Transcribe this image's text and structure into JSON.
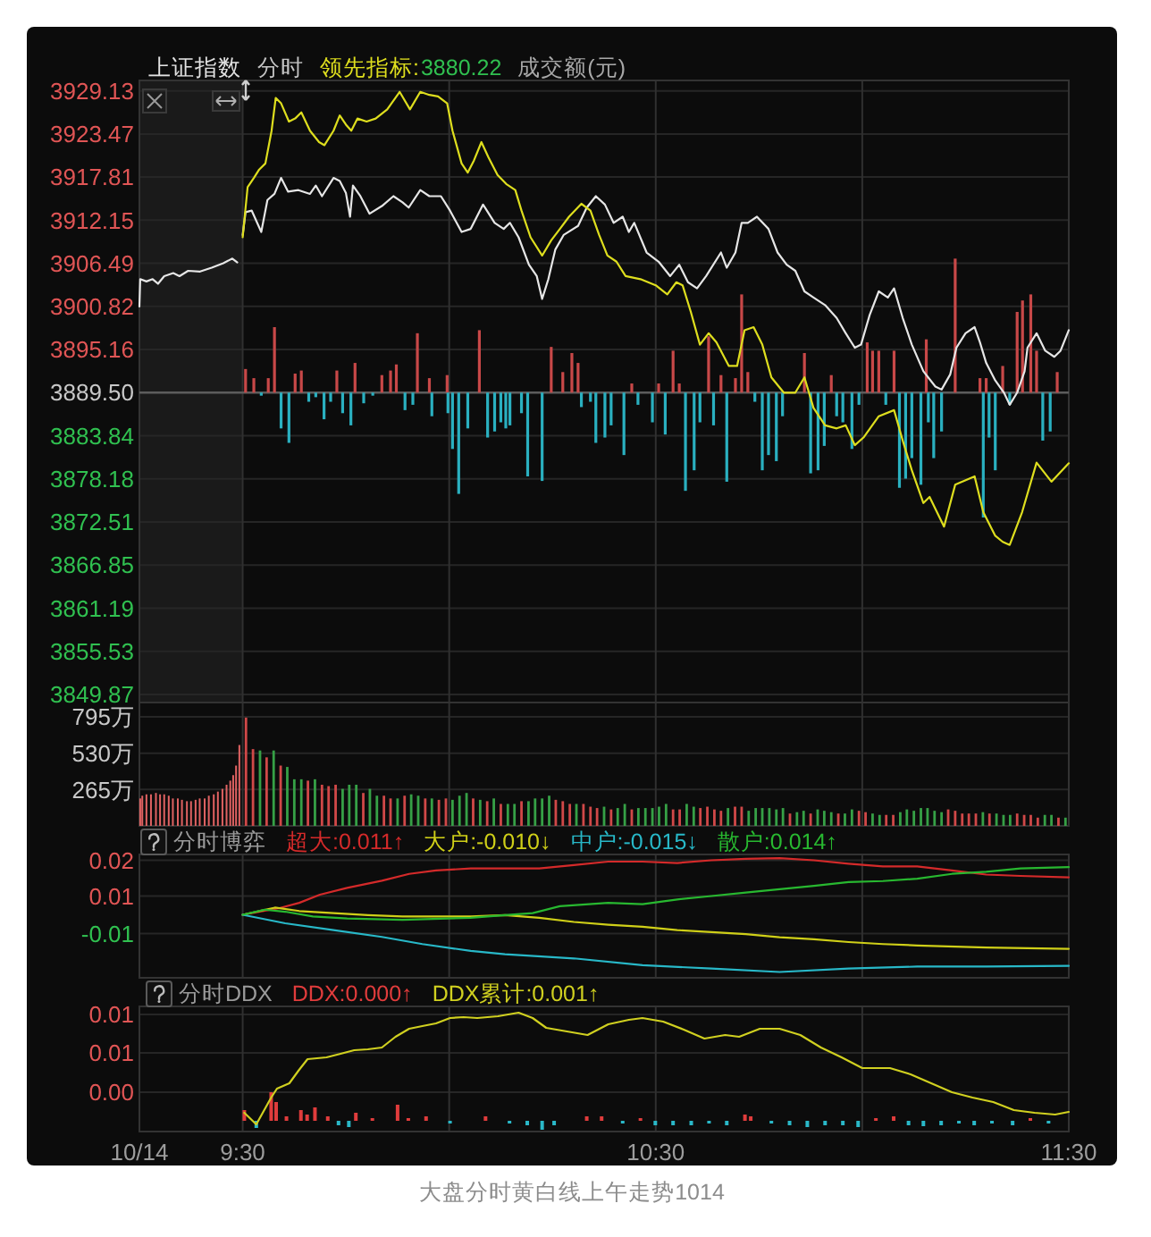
{
  "chart_data": [
    {
      "type": "line",
      "title": "上证指数",
      "subtitle": "分时",
      "legend": "top left",
      "annotations": [
        "3880.22",
        "成交额(元)"
      ],
      "xlim": [
        9.25,
        11.5
      ],
      "xticks": [
        9.25,
        9.5,
        10,
        10.5,
        11,
        11.5
      ],
      "ylim": [
        3848.8,
        3930.5
      ],
      "yticks": [
        3929.13,
        3923.47,
        3917.81,
        3912.15,
        3906.49,
        3900.82,
        3895.16,
        {
          "value": 3889.5,
          "label": "3889.50"
        },
        3883.84,
        3878.18,
        3872.51,
        3866.85,
        3861.19,
        3855.53,
        3849.87
      ],
      "tick_labels": "y",
      "grid": true,
      "ref_lines": [
        {
          "axis": "y",
          "value": 3889.5,
          "color": "#5c5c5c"
        }
      ],
      "bands": [
        {
          "axis": "x",
          "from": 9.25,
          "to": 9.5,
          "color": "#1a1a1a"
        }
      ],
      "series": [
        {
          "type": "bar",
          "color": "#c84848",
          "x": [
            9.507,
            9.527,
            9.562,
            9.577,
            9.627,
            9.642,
            9.728,
            9.772,
            9.837,
            9.858,
            9.872,
            9.923,
            9.952,
            9.995,
            10.073,
            10.247,
            10.275,
            10.297,
            10.312,
            10.442,
            10.507,
            10.542,
            10.557,
            10.628,
            10.658,
            10.693,
            10.708,
            10.723,
            10.86,
            10.925,
            11.012,
            11.025,
            11.04,
            11.077,
            11.155,
            11.225,
            11.285,
            11.3,
            11.34,
            11.375,
            11.388,
            11.408,
            11.422,
            11.472
          ],
          "values": [
            3.1,
            1.9,
            1.9,
            8.6,
            2.5,
            2.9,
            2.9,
            3.9,
            2.3,
            2.9,
            3.7,
            7.8,
            1.9,
            2.3,
            8.2,
            6.0,
            2.7,
            5.2,
            3.9,
            1.2,
            1.2,
            5.5,
            1.2,
            7.4,
            2.3,
            1.9,
            12.9,
            2.7,
            5.2,
            2.3,
            6.6,
            5.5,
            5.5,
            5.5,
            7.0,
            17.6,
            1.9,
            1.9,
            3.5,
            10.6,
            12.1,
            12.9,
            5.5,
            2.7
          ],
          "base": [
            3889.5,
            3889.5,
            3889.5,
            3889.5,
            3889.5,
            3889.5,
            3889.5,
            3889.5,
            3889.5,
            3889.5,
            3889.5,
            3889.5,
            3889.5,
            3889.5,
            3889.5,
            3889.5,
            3889.5,
            3889.5,
            3889.5,
            3889.5,
            3889.5,
            3889.5,
            3889.5,
            3889.5,
            3889.5,
            3889.5,
            3889.5,
            3889.5,
            3889.5,
            3889.5,
            3889.5,
            3889.5,
            3889.5,
            3889.5,
            3889.5,
            3889.5,
            3889.5,
            3889.5,
            3889.5,
            3889.5,
            3889.5,
            3889.5,
            3889.5,
            3889.5
          ]
        },
        {
          "type": "bar",
          "color": "#2ab0c0",
          "x": [
            9.545,
            9.593,
            9.612,
            9.66,
            9.677,
            9.697,
            9.713,
            9.742,
            9.762,
            9.793,
            9.815,
            9.893,
            9.912,
            9.958,
            9.997,
            10.008,
            10.023,
            10.045,
            10.093,
            10.11,
            10.125,
            10.137,
            10.147,
            10.175,
            10.19,
            10.225,
            10.32,
            10.342,
            10.355,
            10.377,
            10.392,
            10.423,
            10.457,
            10.492,
            10.523,
            10.572,
            10.593,
            10.607,
            10.64,
            10.672,
            10.74,
            10.758,
            10.773,
            10.792,
            10.807,
            10.875,
            10.893,
            10.908,
            10.938,
            10.953,
            10.975,
            10.992,
            11.057,
            11.09,
            11.105,
            11.12,
            11.142,
            11.16,
            11.173,
            11.192,
            11.293,
            11.307,
            11.322,
            11.357,
            11.437,
            11.455
          ],
          "values": [
            -0.4,
            -4.7,
            -6.6,
            -1.2,
            -0.6,
            -3.5,
            -1.2,
            -2.7,
            -4.3,
            -1.4,
            -0.4,
            -2.3,
            -1.6,
            -3.1,
            -2.7,
            -7.4,
            -13.3,
            -4.7,
            -5.9,
            -5.1,
            -3.9,
            -4.7,
            -4.3,
            -2.7,
            -11.0,
            -11.6,
            -1.9,
            -1.2,
            -6.6,
            -5.9,
            -4.3,
            -8.2,
            -1.6,
            -3.9,
            -5.5,
            -12.9,
            -10.2,
            -3.9,
            -4.3,
            -11.7,
            -1.2,
            -10.2,
            -8.2,
            -9.0,
            -3.1,
            -10.6,
            -10.2,
            -7.0,
            -3.1,
            -3.9,
            -7.4,
            -1.6,
            -1.6,
            -12.5,
            -11.3,
            -8.6,
            -12.1,
            -3.9,
            -8.6,
            -5.1,
            -16.4,
            -5.9,
            -10.2,
            -1.6,
            -6.3,
            -5.1
          ],
          "base": [
            3889.5,
            3889.5,
            3889.5,
            3889.5,
            3889.5,
            3889.5,
            3889.5,
            3889.5,
            3889.5,
            3889.5,
            3889.5,
            3889.5,
            3889.5,
            3889.5,
            3889.5,
            3889.5,
            3889.5,
            3889.5,
            3889.5,
            3889.5,
            3889.5,
            3889.5,
            3889.5,
            3889.5,
            3889.5,
            3889.5,
            3889.5,
            3889.5,
            3889.5,
            3889.5,
            3889.5,
            3889.5,
            3889.5,
            3889.5,
            3889.5,
            3889.5,
            3889.5,
            3889.5,
            3889.5,
            3889.5,
            3889.5,
            3889.5,
            3889.5,
            3889.5,
            3889.5,
            3889.5,
            3889.5,
            3889.5,
            3889.5,
            3889.5,
            3889.5,
            3889.5,
            3889.5,
            3889.5,
            3889.5,
            3889.5,
            3889.5,
            3889.5,
            3889.5,
            3889.5,
            3889.5,
            3889.5,
            3889.5,
            3889.5,
            3889.5,
            3889.5
          ]
        },
        {
          "color": "#e6e6e6",
          "x": [
            9.25,
            9.252,
            9.267,
            9.282,
            9.295,
            9.31,
            9.332,
            9.347,
            9.368,
            9.397,
            9.425,
            9.453,
            9.475,
            9.487,
            9.493,
            9.5,
            9.507,
            9.522,
            9.545,
            9.56,
            9.577,
            9.593,
            9.61,
            9.635,
            9.663,
            9.677,
            9.692,
            9.72,
            9.735,
            9.75,
            9.76,
            9.767,
            9.785,
            9.807,
            9.837,
            9.865,
            9.887,
            9.902,
            9.93,
            9.952,
            9.98,
            10.002,
            10.03,
            10.052,
            10.082,
            10.11,
            10.132,
            10.147,
            10.168,
            10.193,
            10.212,
            10.225,
            10.24,
            10.257,
            10.277,
            10.312,
            10.333,
            10.355,
            10.377,
            10.398,
            10.42,
            10.435,
            10.448,
            10.478,
            10.507,
            10.535,
            10.557,
            10.578,
            10.6,
            10.622,
            10.658,
            10.672,
            10.693,
            10.708,
            10.723,
            10.745,
            10.773,
            10.795,
            10.817,
            10.838,
            10.86,
            10.882,
            10.91,
            10.938,
            10.96,
            10.982,
            10.997,
            11.018,
            11.04,
            11.062,
            11.077,
            11.098,
            11.12,
            11.148,
            11.177,
            11.192,
            11.213,
            11.228,
            11.25,
            11.272,
            11.285,
            11.3,
            11.322,
            11.343,
            11.357,
            11.375,
            11.393,
            11.4,
            11.422,
            11.443,
            11.465,
            11.48,
            11.5
          ],
          "values": [
            3900.8,
            3904.4,
            3904.1,
            3904.4,
            3903.8,
            3904.8,
            3905.2,
            3904.8,
            3905.5,
            3905.4,
            3905.9,
            3906.5,
            3907.1,
            3906.6,
            null,
            3910.2,
            3913.2,
            3913.4,
            3910.6,
            3914.8,
            3915.6,
            3917.7,
            3915.9,
            3916.1,
            3915.6,
            3916.7,
            3915.3,
            3917.7,
            3917.3,
            3915.7,
            3912.6,
            3916.7,
            3915.3,
            3913.0,
            3914.0,
            3915.3,
            3914.5,
            3913.8,
            3916.1,
            3915.3,
            3915.3,
            3913.4,
            3910.6,
            3911.0,
            3914.2,
            3911.8,
            3911.0,
            3911.8,
            3909.9,
            3906.3,
            3904.8,
            3901.8,
            3904.4,
            3908.3,
            3910.2,
            3911.4,
            3913.8,
            3915.3,
            3914.2,
            3911.8,
            3912.6,
            3910.6,
            3911.8,
            3907.9,
            3906.7,
            3904.8,
            3906.3,
            3904.0,
            3903.2,
            3904.8,
            3907.9,
            3905.9,
            3907.9,
            3911.8,
            3911.8,
            3912.6,
            3911.0,
            3907.9,
            3906.3,
            3905.5,
            3902.8,
            3902.0,
            3901.0,
            3899.3,
            3897.3,
            3895.4,
            3895.8,
            3899.7,
            3902.8,
            3902.0,
            3903.2,
            3899.3,
            3895.8,
            3892.3,
            3890.3,
            3889.9,
            3891.9,
            3895.4,
            3897.3,
            3898.1,
            3896.1,
            3893.4,
            3891.1,
            3889.5,
            3887.9,
            3889.5,
            3892.3,
            3895.4,
            3897.3,
            3895.0,
            3894.2,
            3895.0,
            3897.7
          ]
        },
        {
          "name": "领先指标:",
          "color": "#dede1e",
          "x": [
            9.5,
            9.512,
            9.527,
            9.54,
            9.555,
            9.57,
            9.58,
            9.593,
            9.612,
            9.627,
            9.642,
            9.663,
            9.685,
            9.698,
            9.72,
            9.735,
            9.75,
            9.763,
            9.778,
            9.8,
            9.822,
            9.85,
            9.88,
            9.905,
            9.93,
            9.952,
            9.973,
            9.995,
            10.008,
            10.03,
            10.045,
            10.06,
            10.078,
            10.095,
            10.117,
            10.138,
            10.16,
            10.175,
            10.197,
            10.225,
            10.247,
            10.268,
            10.29,
            10.32,
            10.342,
            10.363,
            10.383,
            10.405,
            10.427,
            10.463,
            10.5,
            10.528,
            10.55,
            10.565,
            10.585,
            10.607,
            10.628,
            10.647,
            10.677,
            10.697,
            10.715,
            10.737,
            10.758,
            10.78,
            10.81,
            10.838,
            10.86,
            10.882,
            10.91,
            10.938,
            10.96,
            10.982,
            11.003,
            11.04,
            11.077,
            11.098,
            11.12,
            11.148,
            11.163,
            11.198,
            11.225,
            11.272,
            11.293,
            11.322,
            11.34,
            11.357,
            11.387,
            11.422,
            11.458,
            11.5
          ],
          "values": [
            3909.9,
            3916.5,
            3917.7,
            3918.8,
            3919.6,
            3923.9,
            3928.2,
            3927.5,
            3925.1,
            3925.5,
            3926.3,
            3923.9,
            3922.4,
            3922.0,
            3923.9,
            3925.9,
            3924.7,
            3923.9,
            3925.5,
            3925.1,
            3925.5,
            3926.7,
            3929.0,
            3926.7,
            3929.0,
            3928.6,
            3928.4,
            3927.5,
            3923.9,
            3919.6,
            3918.4,
            3920.0,
            3922.4,
            3920.4,
            3918.1,
            3916.9,
            3916.1,
            3913.4,
            3909.9,
            3907.5,
            3909.5,
            3911.0,
            3912.6,
            3914.3,
            3913.4,
            3910.2,
            3907.5,
            3906.7,
            3904.8,
            3904.4,
            3903.6,
            3902.4,
            3904.0,
            3903.6,
            3900.1,
            3895.8,
            3897.3,
            3896.1,
            3893.0,
            3893.0,
            3897.7,
            3898.1,
            3895.8,
            3891.5,
            3889.5,
            3889.5,
            3891.5,
            3887.5,
            3885.2,
            3884.8,
            3885.2,
            3882.6,
            3883.6,
            3886.4,
            3887.2,
            3883.2,
            3879.3,
            3875.0,
            3875.8,
            3871.9,
            3877.4,
            3878.5,
            3873.8,
            3870.7,
            3869.9,
            3869.5,
            3873.8,
            3880.3,
            3877.8,
            3880.22
          ]
        }
      ]
    },
    {
      "type": "bar",
      "xlim": [
        9.25,
        11.5
      ],
      "xticks": [
        9.25,
        9.5,
        10,
        10.5,
        11,
        11.5
      ],
      "ylim": [
        0,
        900
      ],
      "yticks": [
        {
          "value": 795,
          "label": "795万"
        },
        {
          "value": 530,
          "label": "530万"
        },
        {
          "value": 265,
          "label": "265万"
        }
      ],
      "tick_labels": "y",
      "grid": true,
      "series": [
        {
          "color": "#e06262",
          "x": [
            9.252,
            9.257,
            9.267,
            9.278,
            9.29,
            9.3,
            9.31,
            9.321,
            9.331,
            9.343,
            9.353,
            9.365,
            9.375,
            9.386,
            9.396,
            9.408,
            9.418,
            9.43,
            9.44,
            9.451,
            9.461,
            9.47,
            9.477,
            9.484,
            9.492
          ],
          "values": [
            200,
            220,
            230,
            230,
            240,
            230,
            230,
            220,
            200,
            200,
            190,
            180,
            180,
            190,
            200,
            200,
            220,
            230,
            250,
            270,
            300,
            330,
            370,
            440,
            590
          ]
        },
        {
          "x": [
            9.508,
            9.525,
            9.542,
            9.558,
            9.575,
            9.592,
            9.608,
            9.625,
            9.642,
            9.658,
            9.675,
            9.692,
            9.708,
            9.725,
            9.742,
            9.758,
            9.775,
            9.792,
            9.808,
            9.825,
            9.842,
            9.858,
            9.875,
            9.892,
            9.908,
            9.925,
            9.942,
            9.958,
            9.975,
            9.992,
            10.008,
            10.025,
            10.042,
            10.058,
            10.075,
            10.092,
            10.108,
            10.125,
            10.142,
            10.158,
            10.175,
            10.192,
            10.208,
            10.225,
            10.242,
            10.258,
            10.275,
            10.292,
            10.308,
            10.325,
            10.342,
            10.358,
            10.375,
            10.392,
            10.408,
            10.425,
            10.442,
            10.458,
            10.475,
            10.492,
            10.508,
            10.525,
            10.542,
            10.558,
            10.575,
            10.592,
            10.608,
            10.625,
            10.642,
            10.658,
            10.675,
            10.692,
            10.708,
            10.725,
            10.742,
            10.758,
            10.775,
            10.792,
            10.808,
            10.825,
            10.842,
            10.858,
            10.875,
            10.892,
            10.908,
            10.925,
            10.942,
            10.958,
            10.975,
            10.992,
            11.008,
            11.025,
            11.042,
            11.058,
            11.075,
            11.092,
            11.108,
            11.125,
            11.142,
            11.158,
            11.175,
            11.192,
            11.208,
            11.225,
            11.242,
            11.258,
            11.275,
            11.292,
            11.308,
            11.325,
            11.342,
            11.358,
            11.375,
            11.392,
            11.408,
            11.425,
            11.442,
            11.458,
            11.475,
            11.492
          ],
          "values": [
            790,
            560,
            550,
            500,
            550,
            440,
            430,
            340,
            340,
            330,
            340,
            300,
            290,
            300,
            270,
            300,
            300,
            240,
            270,
            220,
            220,
            200,
            200,
            220,
            230,
            220,
            200,
            200,
            190,
            200,
            190,
            220,
            240,
            200,
            190,
            180,
            200,
            160,
            160,
            160,
            180,
            180,
            200,
            200,
            220,
            190,
            180,
            160,
            160,
            160,
            140,
            130,
            140,
            120,
            130,
            160,
            120,
            130,
            130,
            130,
            140,
            160,
            120,
            120,
            160,
            140,
            130,
            140,
            120,
            110,
            130,
            140,
            140,
            110,
            130,
            130,
            130,
            120,
            130,
            90,
            100,
            110,
            90,
            120,
            110,
            100,
            90,
            90,
            120,
            110,
            100,
            90,
            80,
            80,
            80,
            100,
            120,
            110,
            130,
            130,
            110,
            100,
            120,
            110,
            90,
            90,
            90,
            100,
            90,
            90,
            80,
            80,
            90,
            80,
            80,
            60,
            80,
            80,
            60,
            60
          ],
          "colors": [
            "#d04848",
            "#d04848",
            "#36a046",
            "#d04848",
            "#36a046",
            "#d04848",
            "#36a046",
            "#36a046",
            "#36a046",
            "#d04848",
            "#36a046",
            "#d04848",
            "#d04848",
            "#d04848",
            "#36a046",
            "#36a046",
            "#36a046",
            "#d04848",
            "#36a046",
            "#36a046",
            "#d04848",
            "#d04848",
            "#36a046",
            "#d04848",
            "#36a046",
            "#36a046",
            "#d04848",
            "#36a046",
            "#d04848",
            "#d04848",
            "#36a046",
            "#36a046",
            "#36a046",
            "#d04848",
            "#36a046",
            "#d04848",
            "#36a046",
            "#d04848",
            "#36a046",
            "#36a046",
            "#d04848",
            "#36a046",
            "#36a046",
            "#36a046",
            "#36a046",
            "#d04848",
            "#d04848",
            "#d04848",
            "#36a046",
            "#d04848",
            "#d04848",
            "#d04848",
            "#36a046",
            "#d04848",
            "#36a046",
            "#36a046",
            "#d04848",
            "#36a046",
            "#36a046",
            "#36a046",
            "#36a046",
            "#36a046",
            "#d04848",
            "#d04848",
            "#36a046",
            "#36a046",
            "#d04848",
            "#d04848",
            "#d04848",
            "#d04848",
            "#36a046",
            "#d04848",
            "#d04848",
            "#36a046",
            "#36a046",
            "#36a046",
            "#36a046",
            "#36a046",
            "#36a046",
            "#d04848",
            "#36a046",
            "#36a046",
            "#d04848",
            "#36a046",
            "#36a046",
            "#36a046",
            "#d04848",
            "#36a046",
            "#36a046",
            "#d04848",
            "#d04848",
            "#36a046",
            "#36a046",
            "#d04848",
            "#d04848",
            "#36a046",
            "#36a046",
            "#36a046",
            "#36a046",
            "#36a046",
            "#36a046",
            "#36a046",
            "#d04848",
            "#d04848",
            "#d04848",
            "#d04848",
            "#d04848",
            "#36a046",
            "#d04848",
            "#36a046",
            "#36a046",
            "#36a046",
            "#d04848",
            "#d04848",
            "#d04848",
            "#d04848",
            "#36a046",
            "#36a046",
            "#d04848",
            "#36a046"
          ]
        }
      ]
    },
    {
      "type": "line",
      "title": "分时博弈",
      "legend": "top left",
      "xlim": [
        9.25,
        11.5
      ],
      "xticks": [
        9.25,
        9.5,
        10,
        10.5,
        11,
        11.5
      ],
      "ylim": [
        -0.0185,
        0.0177
      ],
      "yticks": [
        {
          "value": 0.016,
          "label": "0.02"
        },
        {
          "value": 0.0055,
          "label": "0.01"
        },
        {
          "value": -0.0055,
          "label": "-0.01"
        }
      ],
      "tick_labels": "y",
      "grid": true,
      "series": [
        {
          "name": "超大:0.011↑",
          "color": "#d42a2a",
          "x": [
            9.5,
            9.587,
            9.637,
            9.687,
            9.753,
            9.837,
            9.903,
            9.968,
            10.052,
            10.135,
            10.218,
            10.302,
            10.385,
            10.468,
            10.552,
            10.635,
            10.718,
            10.8,
            10.883,
            10.967,
            11.05,
            11.133,
            11.217,
            11.3,
            11.383,
            11.5
          ],
          "values": [
            0,
            0.0019,
            0.0035,
            0.0059,
            0.0079,
            0.01,
            0.012,
            0.013,
            0.0136,
            0.0136,
            0.0136,
            0.0146,
            0.0156,
            0.0156,
            0.0152,
            0.016,
            0.0164,
            0.0166,
            0.016,
            0.015,
            0.0142,
            0.0142,
            0.013,
            0.0118,
            0.0114,
            0.011
          ]
        },
        {
          "name": "大户:-0.010↓",
          "color": "#cfcf18",
          "x": [
            9.5,
            9.578,
            9.637,
            9.72,
            9.803,
            9.887,
            9.968,
            10.052,
            10.135,
            10.218,
            10.302,
            10.385,
            10.468,
            10.552,
            10.635,
            10.718,
            10.8,
            10.883,
            10.967,
            11.05,
            11.133,
            11.3,
            11.5
          ],
          "values": [
            0,
            0.0021,
            0.0011,
            0.0005,
            -0.0001,
            -0.0005,
            -0.0005,
            -0.0005,
            -0.0001,
            -0.0009,
            -0.0021,
            -0.0029,
            -0.0035,
            -0.0045,
            -0.0051,
            -0.0057,
            -0.0066,
            -0.0072,
            -0.008,
            -0.0086,
            -0.009,
            -0.0096,
            -0.01
          ]
        },
        {
          "name": "中户:-0.015↓",
          "color": "#28b8c8",
          "x": [
            9.5,
            9.603,
            9.72,
            9.837,
            9.935,
            10.052,
            10.135,
            10.302,
            10.468,
            10.635,
            10.8,
            10.967,
            11.133,
            11.3,
            11.5
          ],
          "values": [
            0,
            -0.0025,
            -0.0045,
            -0.0065,
            -0.0086,
            -0.0106,
            -0.0116,
            -0.0128,
            -0.0148,
            -0.0158,
            -0.0168,
            -0.0158,
            -0.0152,
            -0.0152,
            -0.015
          ]
        },
        {
          "name": "散户:0.014↑",
          "color": "#28b830",
          "x": [
            9.5,
            9.553,
            9.603,
            9.67,
            9.753,
            9.887,
            10.052,
            10.135,
            10.202,
            10.268,
            10.385,
            10.468,
            10.552,
            10.635,
            10.718,
            10.8,
            10.883,
            10.967,
            11.05,
            11.133,
            11.217,
            11.3,
            11.383,
            11.5
          ],
          "values": [
            0,
            0.0015,
            0.0009,
            -0.0005,
            -0.0011,
            -0.0015,
            -0.0009,
            -0.0001,
            0.0005,
            0.0025,
            0.0035,
            0.0031,
            0.0045,
            0.0055,
            0.0065,
            0.0075,
            0.0085,
            0.0096,
            0.0099,
            0.0106,
            0.012,
            0.0126,
            0.0136,
            0.014
          ]
        }
      ]
    },
    {
      "type": "line",
      "title": "分时DDX",
      "legend": "top left",
      "annotations": [
        "大盘分时黄白线上午走势1014"
      ],
      "xlim": [
        9.25,
        11.5
      ],
      "xticks": [
        {
          "value": 9.25,
          "label": "10/14"
        },
        {
          "value": 9.5,
          "label": "9:30"
        },
        {
          "value": 10,
          "label": null
        },
        {
          "value": 10.5,
          "label": "10:30"
        },
        {
          "value": 11,
          "label": null
        },
        {
          "value": 11.5,
          "label": "11:30"
        }
      ],
      "ylim": [
        -0.0012,
        0.0128
      ],
      "yticks": [
        {
          "value": 0.0119,
          "label": "0.01"
        },
        {
          "value": 0.0076,
          "label": "0.01"
        },
        {
          "value": 0.0032,
          "label": "0.00"
        }
      ],
      "grid": true,
      "series": [
        {
          "type": "bar",
          "name": "DDX:0.000↑",
          "color": "#e03c3c",
          "x": [
            9.504,
            9.533,
            9.569,
            9.581,
            9.606,
            9.641,
            9.656,
            9.675,
            9.706,
            9.732,
            9.757,
            9.774,
            9.814,
            9.875,
            9.901,
            9.944,
            10.002,
            10.088,
            10.146,
            10.189,
            10.225,
            10.254,
            10.333,
            10.369,
            10.42,
            10.463,
            10.499,
            10.542,
            10.586,
            10.629,
            10.672,
            10.716,
            10.73,
            10.78,
            10.824,
            10.867,
            10.91,
            10.953,
            10.99,
            11.033,
            11.076,
            11.112,
            11.148,
            11.191,
            11.234,
            11.271,
            11.314,
            11.364,
            11.407,
            11.451
          ],
          "values": [
            0.0012,
            -0.0008,
            0.0032,
            0.0021,
            0.0005,
            0.0012,
            0.0007,
            0.0015,
            0.0005,
            -0.0005,
            -0.0007,
            0.0009,
            0.0003,
            0.0018,
            0.0003,
            0.0005,
            -0.0003,
            0.0005,
            -0.0003,
            -0.0005,
            -0.001,
            -0.0005,
            0.0005,
            0.0005,
            -0.0003,
            0.0003,
            -0.0005,
            -0.0005,
            -0.0005,
            -0.0003,
            -0.0005,
            0.0007,
            0.0005,
            -0.0003,
            -0.0005,
            -0.0007,
            -0.0005,
            -0.0005,
            -0.0007,
            0.0003,
            0.0005,
            -0.0005,
            -0.0006,
            -0.0005,
            -0.0003,
            -0.0005,
            -0.0003,
            -0.0005,
            0.0003,
            -0.0003
          ],
          "colors": [
            "#e03c3c",
            "#2ab8c8",
            "#e03c3c",
            "#e03c3c",
            "#e03c3c",
            "#e03c3c",
            "#e03c3c",
            "#e03c3c",
            "#e03c3c",
            "#2ab8c8",
            "#2ab8c8",
            "#e03c3c",
            "#e03c3c",
            "#e03c3c",
            "#e03c3c",
            "#e03c3c",
            "#2ab8c8",
            "#e03c3c",
            "#2ab8c8",
            "#2ab8c8",
            "#2ab8c8",
            "#2ab8c8",
            "#e03c3c",
            "#e03c3c",
            "#2ab8c8",
            "#e03c3c",
            "#2ab8c8",
            "#2ab8c8",
            "#2ab8c8",
            "#2ab8c8",
            "#2ab8c8",
            "#e03c3c",
            "#e03c3c",
            "#2ab8c8",
            "#2ab8c8",
            "#2ab8c8",
            "#2ab8c8",
            "#2ab8c8",
            "#2ab8c8",
            "#e03c3c",
            "#e03c3c",
            "#2ab8c8",
            "#2ab8c8",
            "#2ab8c8",
            "#2ab8c8",
            "#2ab8c8",
            "#2ab8c8",
            "#2ab8c8",
            "#e03c3c",
            "#2ab8c8"
          ]
        },
        {
          "name": "DDX累计:0.001↑",
          "color": "#d0d020",
          "x": [
            9.504,
            9.533,
            9.569,
            9.583,
            9.613,
            9.635,
            9.657,
            9.703,
            9.737,
            9.77,
            9.803,
            9.837,
            9.87,
            9.903,
            9.935,
            9.968,
            10.002,
            10.035,
            10.068,
            10.118,
            10.168,
            10.202,
            10.235,
            10.285,
            10.335,
            10.385,
            10.435,
            10.468,
            10.518,
            10.568,
            10.618,
            10.668,
            10.702,
            10.752,
            10.8,
            10.85,
            10.9,
            10.95,
            11.0,
            11.067,
            11.117,
            11.167,
            11.217,
            11.267,
            11.317,
            11.367,
            11.417,
            11.467,
            11.5
          ],
          "values": [
            0.0009,
            -0.0004,
            0.0026,
            0.0036,
            0.0042,
            0.0056,
            0.0069,
            0.0071,
            0.0075,
            0.0079,
            0.008,
            0.0082,
            0.0094,
            0.0103,
            0.0106,
            0.0109,
            0.0115,
            0.0116,
            0.0115,
            0.0117,
            0.0121,
            0.0115,
            0.0104,
            0.01,
            0.0096,
            0.0108,
            0.0113,
            0.0115,
            0.0111,
            0.0102,
            0.0092,
            0.0096,
            0.0094,
            0.0103,
            0.0103,
            0.0096,
            0.0082,
            0.0071,
            0.0059,
            0.0059,
            0.0052,
            0.0042,
            0.0032,
            0.0026,
            0.0021,
            0.0012,
            0.0009,
            0.0007,
            0.001
          ]
        }
      ]
    }
  ]
}
